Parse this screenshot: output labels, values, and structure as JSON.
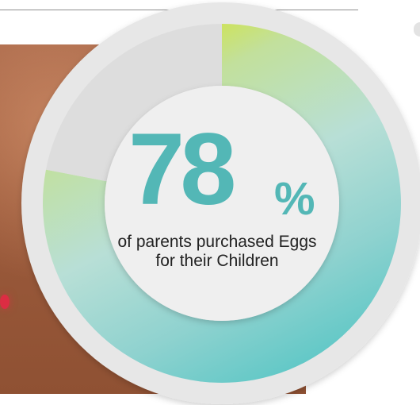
{
  "chart_data": {
    "type": "pie",
    "center_value": "78",
    "center_suffix": "%",
    "caption": "of parents purchased Eggs for their Children",
    "series": [
      {
        "value": 78,
        "colors": [
          "#d7e523",
          "#c2e09c",
          "#b8dfd6",
          "#8fd2cf",
          "#58c6c5"
        ]
      },
      {
        "value": 22,
        "color": "#dddddd"
      }
    ]
  },
  "colors": {
    "accent": "#53b7b6",
    "outer_ring": "#e7e7e7",
    "inner_disc": "#efefef",
    "photo_background": "#9c5b3c"
  }
}
